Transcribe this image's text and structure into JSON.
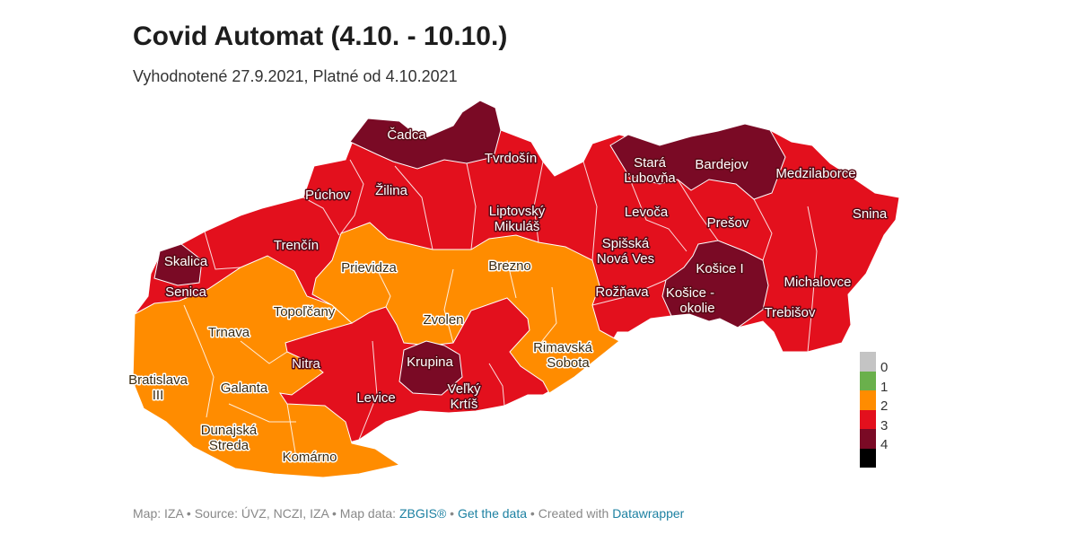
{
  "header": {
    "title": "Covid Automat (4.10. - 10.10.)",
    "subtitle": "Vyhodnotené 27.9.2021, Platné od 4.10.2021"
  },
  "colors": {
    "level_0": "#c4c4c4",
    "level_1": "#6ab04c",
    "level_2": "#ff8c00",
    "level_3": "#e3101d",
    "level_4_dark": "#7a0a25",
    "level_4_black": "#000000",
    "district_border": "#ffffff",
    "link": "#1d81a2"
  },
  "legend": [
    {
      "label": "0",
      "color": "#c4c4c4"
    },
    {
      "label": "1",
      "color": "#6ab04c"
    },
    {
      "label": "2",
      "color": "#ff8c00"
    },
    {
      "label": "3",
      "color": "#e3101d"
    },
    {
      "label": "4",
      "color": "#7a0a25"
    },
    {
      "label": "",
      "color": "#000000"
    }
  ],
  "districts": [
    {
      "name": "Čadca",
      "level": 4
    },
    {
      "name": "Tvrdošín",
      "level": 3
    },
    {
      "name": "Stará Ľubovňa",
      "level": 4
    },
    {
      "name": "Bardejov",
      "level": 4
    },
    {
      "name": "Medzilaborce",
      "level": 4
    },
    {
      "name": "Púchov",
      "level": 3
    },
    {
      "name": "Žilina",
      "level": 3
    },
    {
      "name": "Snina",
      "level": 3
    },
    {
      "name": "Liptovský Mikuláš",
      "level": 3
    },
    {
      "name": "Levoča",
      "level": 3
    },
    {
      "name": "Prešov",
      "level": 3
    },
    {
      "name": "Trenčín",
      "level": 3
    },
    {
      "name": "Spišská Nová Ves",
      "level": 3
    },
    {
      "name": "Skalica",
      "level": 4
    },
    {
      "name": "Prievidza",
      "level": 2
    },
    {
      "name": "Brezno",
      "level": 2
    },
    {
      "name": "Košice I",
      "level": 4
    },
    {
      "name": "Senica",
      "level": 3
    },
    {
      "name": "Michalovce",
      "level": 3
    },
    {
      "name": "Rožňava",
      "level": 3
    },
    {
      "name": "Košice - okolie",
      "level": 4
    },
    {
      "name": "Topoľčany",
      "level": 2
    },
    {
      "name": "Trebišov",
      "level": 3
    },
    {
      "name": "Zvolen",
      "level": 2
    },
    {
      "name": "Trnava",
      "level": 2
    },
    {
      "name": "Rimavská Sobota",
      "level": 2
    },
    {
      "name": "Nitra",
      "level": 3
    },
    {
      "name": "Krupina",
      "level": 4
    },
    {
      "name": "Bratislava III",
      "level": 2
    },
    {
      "name": "Galanta",
      "level": 2
    },
    {
      "name": "Levice",
      "level": 3
    },
    {
      "name": "Veľký Krtíš",
      "level": 3
    },
    {
      "name": "Dunajská Streda",
      "level": 2
    },
    {
      "name": "Komárno",
      "level": 2
    }
  ],
  "labels": {
    "cadca": "Čadca",
    "tvrdosin": "Tvrdošín",
    "stara_lubovna_1": "Stará",
    "stara_lubovna_2": "Ľubovňa",
    "bardejov": "Bardejov",
    "medzilaborce": "Medzilaborce",
    "puchov": "Púchov",
    "zilina": "Žilina",
    "snina": "Snina",
    "liptovsky_mikulas_1": "Liptovský",
    "liptovsky_mikulas_2": "Mikuláš",
    "levoca": "Levoča",
    "presov": "Prešov",
    "trencin": "Trenčín",
    "spisska_nova_ves_1": "Spišská",
    "spisska_nova_ves_2": "Nová Ves",
    "skalica": "Skalica",
    "prievidza": "Prievidza",
    "brezno": "Brezno",
    "kosice_1": "Košice I",
    "senica": "Senica",
    "michalovce": "Michalovce",
    "roznava": "Rožňava",
    "kosice_okolie_1": "Košice -",
    "kosice_okolie_2": "okolie",
    "topolcany": "Topoľčany",
    "trebisov": "Trebišov",
    "zvolen": "Zvolen",
    "trnava": "Trnava",
    "rimavska_sobota_1": "Rimavská",
    "rimavska_sobota_2": "Sobota",
    "nitra": "Nitra",
    "krupina": "Krupina",
    "bratislava_1": "Bratislava",
    "bratislava_2": "III",
    "galanta": "Galanta",
    "levice": "Levice",
    "velky_krtis_1": "Veľký",
    "velky_krtis_2": "Krtíš",
    "dunajska_streda_1": "Dunajská",
    "dunajska_streda_2": "Streda",
    "komarno": "Komárno"
  },
  "footer": {
    "map_credit": "Map: IZA",
    "sep": " • ",
    "source": "Source: ÚVZ, NCZI, IZA",
    "map_data": "Map data: ",
    "zbgis": "ZBGIS®",
    "get_data": "Get the data",
    "created_with": "Created with ",
    "datawrapper": "Datawrapper"
  }
}
